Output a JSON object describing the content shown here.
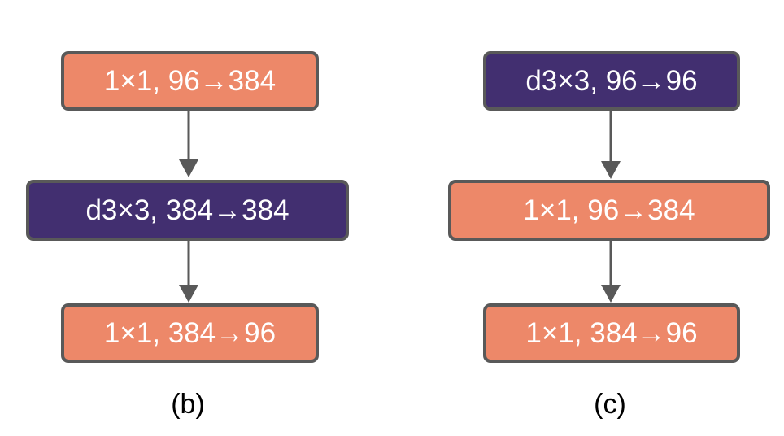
{
  "colors": {
    "conv1x1": "#ed8869",
    "dilated": "#422f70",
    "border": "#595959",
    "arrow": "#595959"
  },
  "diagram_b": {
    "caption": "(b)",
    "blocks": [
      {
        "label": "1×1, 96→384",
        "kind": "conv1x1"
      },
      {
        "label": "d3×3, 384→384",
        "kind": "dilated"
      },
      {
        "label": "1×1, 384→96",
        "kind": "conv1x1"
      }
    ]
  },
  "diagram_c": {
    "caption": "(c)",
    "blocks": [
      {
        "label": "d3×3, 96→96",
        "kind": "dilated"
      },
      {
        "label": "1×1, 96→384",
        "kind": "conv1x1"
      },
      {
        "label": "1×1, 384→96",
        "kind": "conv1x1"
      }
    ]
  }
}
